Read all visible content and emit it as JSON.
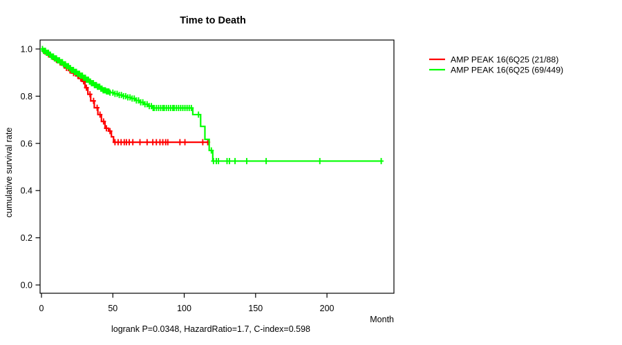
{
  "chart_data": {
    "type": "line",
    "subtype": "kaplan-meier-step",
    "title": "Time to Death",
    "xlabel": "Month",
    "ylabel": "cumulative survival rate",
    "footnote": "logrank P=0.0348, HazardRatio=1.7, C-index=0.598",
    "grid": "off",
    "xlim": [
      0,
      247
    ],
    "ylim": [
      0.0,
      1.0
    ],
    "xticks": {
      "values": [
        0,
        50,
        100,
        150,
        200
      ],
      "labels": [
        "0",
        "50",
        "100",
        "150",
        "200"
      ]
    },
    "yticks": {
      "values": [
        0.0,
        0.2,
        0.4,
        0.6,
        0.8,
        1.0
      ],
      "labels": [
        "0.0",
        "0.2",
        "0.4",
        "0.6",
        "0.8",
        "1.0"
      ]
    },
    "legend": {
      "position": "right-outside",
      "entries": [
        {
          "label": "AMP PEAK 16(6Q25 (21/88)",
          "color": "#ff0000"
        },
        {
          "label": "AMP PEAK 16(6Q25 (69/449)",
          "color": "#00ff00"
        }
      ]
    },
    "series": [
      {
        "name": "AMP PEAK 16(6Q25 (21/88)",
        "color": "#ff0000",
        "end_month": 117,
        "final_survival": 0.605,
        "steps": [
          [
            0,
            1.0
          ],
          [
            1,
            0.989
          ],
          [
            4,
            0.977
          ],
          [
            6,
            0.966
          ],
          [
            9,
            0.955
          ],
          [
            11,
            0.943
          ],
          [
            14,
            0.932
          ],
          [
            16,
            0.92
          ],
          [
            19,
            0.909
          ],
          [
            21,
            0.898
          ],
          [
            24,
            0.886
          ],
          [
            26,
            0.875
          ],
          [
            28.5,
            0.863
          ],
          [
            30.5,
            0.836
          ],
          [
            32.5,
            0.808
          ],
          [
            34.5,
            0.78
          ],
          [
            37,
            0.751
          ],
          [
            39.5,
            0.722
          ],
          [
            42,
            0.693
          ],
          [
            44.5,
            0.664
          ],
          [
            47,
            0.652
          ],
          [
            49,
            0.628
          ],
          [
            50.5,
            0.605
          ]
        ],
        "censor_months": [
          2.5,
          5,
          8,
          10.5,
          13,
          17.5,
          20,
          22.5,
          25.5,
          27.5,
          29.5,
          31.5,
          34,
          36.5,
          39,
          41,
          43.5,
          45.5,
          48,
          51.5,
          53.7,
          55.8,
          58,
          59.5,
          61.5,
          64,
          69,
          74,
          78,
          80.5,
          83,
          85,
          87,
          88.5,
          97,
          100.5,
          113,
          116.5
        ]
      },
      {
        "name": "AMP PEAK 16(6Q25 (69/449)",
        "color": "#00ff00",
        "end_month": 238,
        "final_survival": 0.525,
        "steps": [
          [
            0,
            1.0
          ],
          [
            1,
            0.992
          ],
          [
            3,
            0.984
          ],
          [
            5,
            0.976
          ],
          [
            7,
            0.968
          ],
          [
            9,
            0.96
          ],
          [
            11,
            0.952
          ],
          [
            13,
            0.944
          ],
          [
            15,
            0.935
          ],
          [
            17,
            0.927
          ],
          [
            19,
            0.919
          ],
          [
            21,
            0.911
          ],
          [
            23,
            0.903
          ],
          [
            25,
            0.895
          ],
          [
            27,
            0.887
          ],
          [
            29,
            0.878
          ],
          [
            31,
            0.87
          ],
          [
            33,
            0.862
          ],
          [
            35,
            0.855
          ],
          [
            37,
            0.847
          ],
          [
            39,
            0.84
          ],
          [
            41,
            0.832
          ],
          [
            43,
            0.825
          ],
          [
            45,
            0.82
          ],
          [
            48,
            0.815
          ],
          [
            51,
            0.81
          ],
          [
            54,
            0.805
          ],
          [
            57,
            0.8
          ],
          [
            60,
            0.795
          ],
          [
            63,
            0.79
          ],
          [
            66,
            0.782
          ],
          [
            69,
            0.774
          ],
          [
            72,
            0.766
          ],
          [
            75,
            0.758
          ],
          [
            78,
            0.75
          ],
          [
            106,
            0.722
          ],
          [
            111.5,
            0.672
          ],
          [
            114.5,
            0.617
          ],
          [
            117.5,
            0.57
          ],
          [
            120,
            0.525
          ]
        ],
        "censor_months": [
          0.7,
          1.4,
          2.1,
          2.8,
          3.5,
          4.2,
          4.9,
          5.6,
          6.3,
          7,
          7.7,
          8.4,
          9.1,
          9.8,
          10.5,
          11.2,
          11.9,
          12.6,
          13.3,
          14,
          14.7,
          15.4,
          16.1,
          16.8,
          17.5,
          18.2,
          18.9,
          19.6,
          20.3,
          21,
          21.7,
          22.4,
          23.1,
          23.8,
          24.5,
          25.2,
          25.9,
          26.6,
          27.3,
          28,
          28.7,
          29.4,
          30.1,
          30.8,
          31.5,
          32.2,
          32.9,
          33.6,
          34.3,
          35,
          35.7,
          36.4,
          37.1,
          37.8,
          38.5,
          39.2,
          40,
          40.8,
          41.6,
          42.4,
          43.2,
          44,
          44.8,
          45.6,
          46.4,
          47.2,
          48,
          50,
          51.5,
          53,
          54.5,
          56,
          57.5,
          59,
          60.5,
          62,
          63.5,
          65,
          66.5,
          68,
          69.5,
          71,
          72.5,
          74,
          75.5,
          77,
          78.2,
          79,
          80.5,
          82,
          83.5,
          85,
          86,
          87.5,
          89,
          90.5,
          92,
          93,
          94.5,
          96,
          97.5,
          99,
          100.5,
          102,
          103.5,
          105,
          110,
          119,
          120.5,
          122.5,
          124,
          130,
          131.7,
          135.6,
          143.8,
          157.4,
          195,
          238
        ]
      }
    ]
  }
}
